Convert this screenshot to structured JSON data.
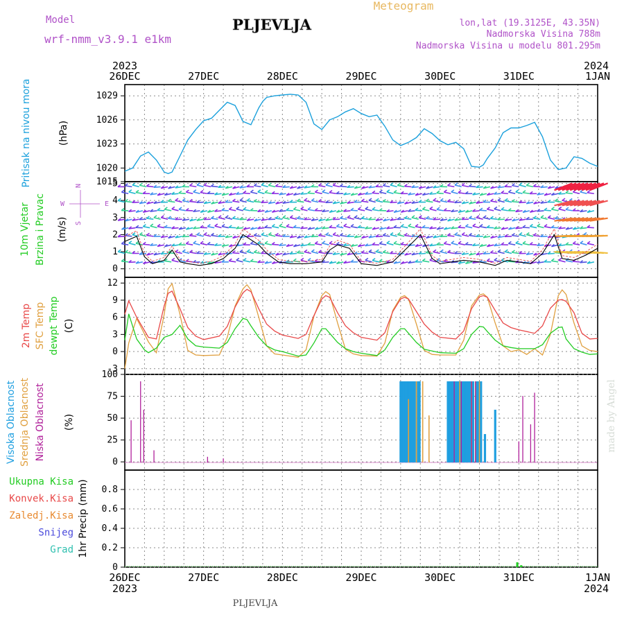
{
  "header": {
    "model_label": "Model",
    "model_name": "wrf-nmm_v3.9.1 e1km",
    "station": "PLJEVLJA",
    "product": "Meteogram",
    "lonlat": "lon,lat (19.3125E, 43.35N)",
    "elevation": "Nadmorska Visina 788m",
    "model_elevation": "Nadmorska Visina u modelu 801.295m",
    "footer_station": "PLJEVLJA",
    "credit": "made by Angel"
  },
  "time_axis": {
    "labels": [
      "26DEC",
      "27DEC",
      "28DEC",
      "29DEC",
      "30DEC",
      "31DEC",
      "1JAN"
    ],
    "start_year": "2023",
    "end_year": "2024",
    "days": 6
  },
  "colors": {
    "pressure": "#1aa0dc",
    "temp2m": "#e84848",
    "sfc_temp": "#e0a040",
    "dewpoint": "#22cc22",
    "high_cloud": "#1f9fe0",
    "mid_cloud": "#e0a040",
    "low_cloud": "#b0209a",
    "wind_speed": "#000000",
    "gust": "#e84848",
    "purple_text": "#b052c8",
    "orange_text": "#e8b860"
  },
  "panels": {
    "pressure": {
      "label_line1": "Pritisak na nivou mora",
      "unit": "(hPa)",
      "ticks": [
        "1029",
        "1026",
        "1023",
        "1020",
        "1015"
      ]
    },
    "wind": {
      "label_line1": "10m Vjetar",
      "label_line2": "Brzina i Pravac",
      "unit": "(m/s)",
      "ticks": [
        "5",
        "4",
        "3",
        "2",
        "1",
        "0"
      ],
      "compass": {
        "n": "N",
        "s": "S",
        "e": "E",
        "w": "W"
      }
    },
    "temperature": {
      "label_line1": "2m Temp",
      "label_line2": "SFC Temp",
      "label_line3": "dewpt Temp",
      "unit": "(C)",
      "ticks": [
        "12",
        "9",
        "6",
        "3",
        "0",
        "-3"
      ]
    },
    "cloud": {
      "label_line1": "Visoka Oblacnost",
      "label_line2": "Srednja Oblacnost",
      "label_line3": "Niska Oblacnost",
      "unit": "(%)",
      "ticks": [
        "100",
        "75",
        "50",
        "25",
        "0"
      ]
    },
    "precip": {
      "legend": [
        "Ukupna Kisa",
        "Konvek.Kisa",
        "Zaledj.Kisa",
        "Snijeg",
        "Grad"
      ],
      "legend_colors": [
        "#22cc22",
        "#e84848",
        "#e88a30",
        "#4a4adc",
        "#30c0b0"
      ],
      "unit": "1hr Precip (mm)",
      "ticks": [
        "0.8",
        "0.6",
        "0.4",
        "0.2",
        "0"
      ]
    }
  },
  "chart_data": [
    {
      "type": "line",
      "name": "pressure",
      "ylim": [
        1018.3,
        1030.4
      ],
      "x": [
        0,
        0.1,
        0.2,
        0.3,
        0.4,
        0.5,
        0.55,
        0.6,
        0.7,
        0.8,
        0.9,
        1.0,
        1.1,
        1.2,
        1.3,
        1.4,
        1.5,
        1.6,
        1.7,
        1.75,
        1.8,
        1.9,
        2.0,
        2.1,
        2.2,
        2.3,
        2.4,
        2.5,
        2.6,
        2.7,
        2.8,
        2.9,
        3.0,
        3.1,
        3.2,
        3.3,
        3.4,
        3.5,
        3.6,
        3.7,
        3.8,
        3.9,
        4.0,
        4.1,
        4.2,
        4.3,
        4.4,
        4.5,
        4.55,
        4.6,
        4.7,
        4.8,
        4.9,
        5.0,
        5.1,
        5.2,
        5.3,
        5.4,
        5.5,
        5.6,
        5.7,
        5.8,
        5.9,
        6.0
      ],
      "y": [
        1019.6,
        1020,
        1021.5,
        1022,
        1021,
        1019.5,
        1019.3,
        1019.5,
        1021.5,
        1023.5,
        1024.8,
        1025.9,
        1026.2,
        1027.2,
        1028.2,
        1027.8,
        1025.8,
        1025.4,
        1027.5,
        1028.3,
        1028.8,
        1029.0,
        1029.1,
        1029.2,
        1029.1,
        1028.2,
        1025.5,
        1024.8,
        1026.0,
        1026.4,
        1027.0,
        1027.4,
        1026.8,
        1026.4,
        1026.6,
        1025.2,
        1023.5,
        1022.8,
        1023.2,
        1023.8,
        1024.9,
        1024.3,
        1023.4,
        1022.9,
        1023.2,
        1022.4,
        1020.2,
        1020.1,
        1020.4,
        1021.2,
        1022.5,
        1024.4,
        1025.0,
        1025.0,
        1025.3,
        1025.7,
        1023.9,
        1021.0,
        1019.8,
        1020.0,
        1021.4,
        1021.2,
        1020.6,
        1020.2
      ]
    },
    {
      "type": "line",
      "name": "wind_speed",
      "ylim": [
        -0.5,
        5.1
      ],
      "x": [
        0,
        0.15,
        0.25,
        0.35,
        0.5,
        0.6,
        0.7,
        0.8,
        0.95,
        1.1,
        1.25,
        1.4,
        1.5,
        1.6,
        1.7,
        1.8,
        1.95,
        2.1,
        2.3,
        2.5,
        2.6,
        2.7,
        2.85,
        3.0,
        3.2,
        3.4,
        3.6,
        3.75,
        3.9,
        4.0,
        4.15,
        4.3,
        4.5,
        4.7,
        4.85,
        5.0,
        5.15,
        5.3,
        5.45,
        5.55,
        5.7,
        5.85,
        6.0
      ],
      "y": [
        1.6,
        1.9,
        0.7,
        0.3,
        0.5,
        1.1,
        0.4,
        0.3,
        0.2,
        0.3,
        0.6,
        1.2,
        2.0,
        1.7,
        1.4,
        0.9,
        0.4,
        0.3,
        0.3,
        0.4,
        1.1,
        1.4,
        1.2,
        0.3,
        0.2,
        0.4,
        1.3,
        2.0,
        0.6,
        0.3,
        0.4,
        0.5,
        0.4,
        0.2,
        0.5,
        0.4,
        0.3,
        0.9,
        2.0,
        0.6,
        0.5,
        0.8,
        1.2
      ]
    },
    {
      "type": "line",
      "name": "2m_temp",
      "ylim": [
        -4,
        13
      ],
      "x": [
        0,
        0.05,
        0.15,
        0.3,
        0.4,
        0.5,
        0.55,
        0.6,
        0.7,
        0.8,
        0.9,
        1.0,
        1.2,
        1.3,
        1.4,
        1.5,
        1.55,
        1.6,
        1.7,
        1.8,
        1.9,
        2.0,
        2.2,
        2.3,
        2.4,
        2.5,
        2.55,
        2.6,
        2.7,
        2.8,
        2.9,
        3.0,
        3.2,
        3.3,
        3.4,
        3.5,
        3.55,
        3.6,
        3.7,
        3.8,
        3.9,
        4.0,
        4.2,
        4.3,
        4.4,
        4.5,
        4.55,
        4.6,
        4.7,
        4.8,
        4.9,
        5.0,
        5.2,
        5.3,
        5.4,
        5.5,
        5.55,
        5.6,
        5.7,
        5.8,
        5.9,
        6.0
      ],
      "y": [
        6.5,
        8.9,
        6.0,
        2.5,
        2.2,
        8.0,
        10.2,
        10.6,
        7.5,
        4.2,
        2.7,
        2.1,
        2.7,
        4.4,
        7.8,
        10.3,
        10.9,
        10.5,
        7.5,
        4.8,
        3.6,
        2.9,
        2.3,
        3.0,
        6.3,
        9.2,
        9.8,
        9.5,
        6.8,
        4.5,
        3.3,
        2.5,
        2.0,
        3.3,
        7.0,
        9.2,
        9.5,
        9.2,
        7.0,
        4.8,
        3.4,
        2.5,
        2.2,
        3.6,
        7.5,
        9.6,
        9.8,
        9.5,
        7.2,
        5.0,
        4.2,
        3.8,
        3.2,
        4.5,
        7.6,
        9.0,
        9.1,
        8.8,
        6.8,
        3.2,
        2.2,
        2.3
      ]
    },
    {
      "type": "line",
      "name": "sfc_temp",
      "ylim": [
        -4,
        13
      ],
      "x": [
        0,
        0.05,
        0.15,
        0.3,
        0.4,
        0.5,
        0.55,
        0.6,
        0.7,
        0.8,
        0.9,
        1.0,
        1.2,
        1.3,
        1.4,
        1.5,
        1.55,
        1.6,
        1.7,
        1.8,
        1.9,
        2.0,
        2.2,
        2.3,
        2.4,
        2.5,
        2.55,
        2.6,
        2.7,
        2.8,
        2.9,
        3.0,
        3.2,
        3.3,
        3.4,
        3.5,
        3.55,
        3.6,
        3.7,
        3.8,
        3.9,
        4.0,
        4.2,
        4.3,
        4.4,
        4.5,
        4.55,
        4.6,
        4.7,
        4.8,
        4.9,
        5.0,
        5.1,
        5.2,
        5.3,
        5.4,
        5.5,
        5.55,
        5.6,
        5.7,
        5.8,
        5.9,
        6.0
      ],
      "y": [
        -3.0,
        1.5,
        5.8,
        1.7,
        -0.2,
        6.5,
        11.0,
        11.9,
        6.5,
        0.2,
        -0.6,
        -0.7,
        -0.6,
        2.5,
        8.0,
        11.0,
        11.7,
        10.8,
        6.0,
        1.0,
        -0.4,
        -0.6,
        -1.0,
        0.3,
        6.2,
        9.8,
        10.5,
        10.0,
        5.0,
        0.4,
        -0.4,
        -0.7,
        -0.8,
        1.5,
        7.2,
        9.5,
        9.8,
        9.2,
        4.8,
        0.2,
        -0.5,
        -0.6,
        -0.6,
        2.0,
        8.0,
        9.9,
        10.1,
        9.5,
        5.0,
        1.0,
        0.0,
        0.3,
        -0.5,
        0.5,
        -0.6,
        3.0,
        9.8,
        10.8,
        10.0,
        5.0,
        1.0,
        0.2,
        0.0
      ]
    },
    {
      "type": "line",
      "name": "dewpoint",
      "ylim": [
        -4,
        13
      ],
      "x": [
        0,
        0.05,
        0.15,
        0.25,
        0.3,
        0.4,
        0.5,
        0.6,
        0.7,
        0.8,
        0.9,
        1.0,
        1.2,
        1.3,
        1.4,
        1.5,
        1.55,
        1.6,
        1.7,
        1.8,
        1.9,
        2.0,
        2.2,
        2.3,
        2.4,
        2.5,
        2.55,
        2.6,
        2.7,
        2.8,
        2.9,
        3.0,
        3.2,
        3.3,
        3.4,
        3.5,
        3.55,
        3.6,
        3.7,
        3.8,
        3.9,
        4.0,
        4.2,
        4.3,
        4.4,
        4.5,
        4.55,
        4.6,
        4.7,
        4.8,
        4.9,
        5.0,
        5.2,
        5.3,
        5.4,
        5.5,
        5.55,
        5.6,
        5.7,
        5.8,
        5.9,
        6.0
      ],
      "y": [
        2.0,
        6.6,
        2.2,
        0.3,
        -0.2,
        0.6,
        2.5,
        3.0,
        4.6,
        2.2,
        1.0,
        0.8,
        0.6,
        1.6,
        4.0,
        5.8,
        5.6,
        4.5,
        2.5,
        1.0,
        0.3,
        0.0,
        -0.8,
        -0.6,
        1.5,
        4.0,
        4.0,
        3.2,
        1.6,
        0.5,
        0.0,
        -0.3,
        -0.7,
        0.3,
        2.5,
        4.0,
        4.0,
        3.2,
        1.6,
        0.4,
        0.1,
        -0.2,
        -0.3,
        0.5,
        3.0,
        4.4,
        4.3,
        3.5,
        2.0,
        1.0,
        0.7,
        0.5,
        0.5,
        1.2,
        3.2,
        4.2,
        4.3,
        2.2,
        0.5,
        -0.1,
        -0.5,
        -0.4
      ]
    },
    {
      "type": "bar",
      "name": "clouds",
      "ylim": [
        0,
        100
      ],
      "high": [
        [
          3.5,
          100
        ],
        [
          3.52,
          100
        ],
        [
          3.54,
          100
        ],
        [
          3.56,
          100
        ],
        [
          3.58,
          100
        ],
        [
          3.6,
          100
        ],
        [
          3.62,
          100
        ],
        [
          3.64,
          100
        ],
        [
          3.66,
          100
        ],
        [
          3.68,
          100
        ],
        [
          3.72,
          100
        ],
        [
          3.74,
          100
        ],
        [
          4.1,
          100
        ],
        [
          4.12,
          100
        ],
        [
          4.14,
          100
        ],
        [
          4.16,
          100
        ],
        [
          4.18,
          100
        ],
        [
          4.2,
          100
        ],
        [
          4.22,
          100
        ],
        [
          4.24,
          100
        ],
        [
          4.26,
          100
        ],
        [
          4.28,
          100
        ],
        [
          4.3,
          100
        ],
        [
          4.32,
          100
        ],
        [
          4.34,
          100
        ],
        [
          4.36,
          100
        ],
        [
          4.38,
          100
        ],
        [
          4.4,
          100
        ],
        [
          4.42,
          100
        ],
        [
          4.46,
          100
        ],
        [
          4.48,
          100
        ],
        [
          4.5,
          100
        ],
        [
          4.52,
          100
        ],
        [
          4.57,
          35
        ],
        [
          4.7,
          65
        ]
      ],
      "mid": [
        [
          3.6,
          78
        ],
        [
          3.7,
          100
        ],
        [
          3.78,
          100
        ],
        [
          3.86,
          58
        ],
        [
          4.25,
          100
        ],
        [
          4.4,
          100
        ],
        [
          4.45,
          100
        ],
        [
          4.5,
          100
        ]
      ],
      "low": [
        [
          0.08,
          52
        ],
        [
          0.2,
          100
        ],
        [
          0.24,
          65
        ],
        [
          0.37,
          15
        ],
        [
          1.05,
          7
        ],
        [
          1.25,
          5
        ],
        [
          4.18,
          100
        ],
        [
          4.27,
          100
        ],
        [
          4.4,
          100
        ],
        [
          4.45,
          100
        ],
        [
          5.0,
          26
        ],
        [
          5.05,
          82
        ],
        [
          5.15,
          47
        ],
        [
          5.2,
          86
        ]
      ]
    },
    {
      "type": "bar",
      "name": "precip",
      "ylim": [
        0,
        1.0
      ],
      "total": [
        [
          4.98,
          0.05
        ],
        [
          5.03,
          0.02
        ]
      ]
    }
  ]
}
